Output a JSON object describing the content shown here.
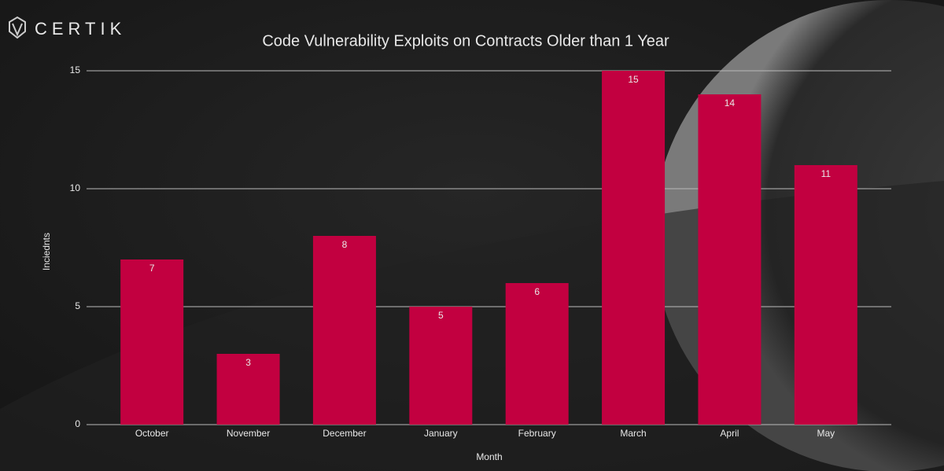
{
  "logo": {
    "text": "CERTIK"
  },
  "chart_data": {
    "type": "bar",
    "title": "Code Vulnerability Exploits on Contracts Older than 1 Year",
    "x_label": "Month",
    "y_label": "Inciednts",
    "categories": [
      "October",
      "November",
      "December",
      "January",
      "February",
      "March",
      "April",
      "May"
    ],
    "values": [
      7,
      3,
      8,
      5,
      6,
      15,
      14,
      11
    ],
    "color": "#c20040",
    "ylim": [
      0,
      15
    ],
    "yticks": [
      0,
      5,
      10,
      15
    ],
    "grid": true
  }
}
